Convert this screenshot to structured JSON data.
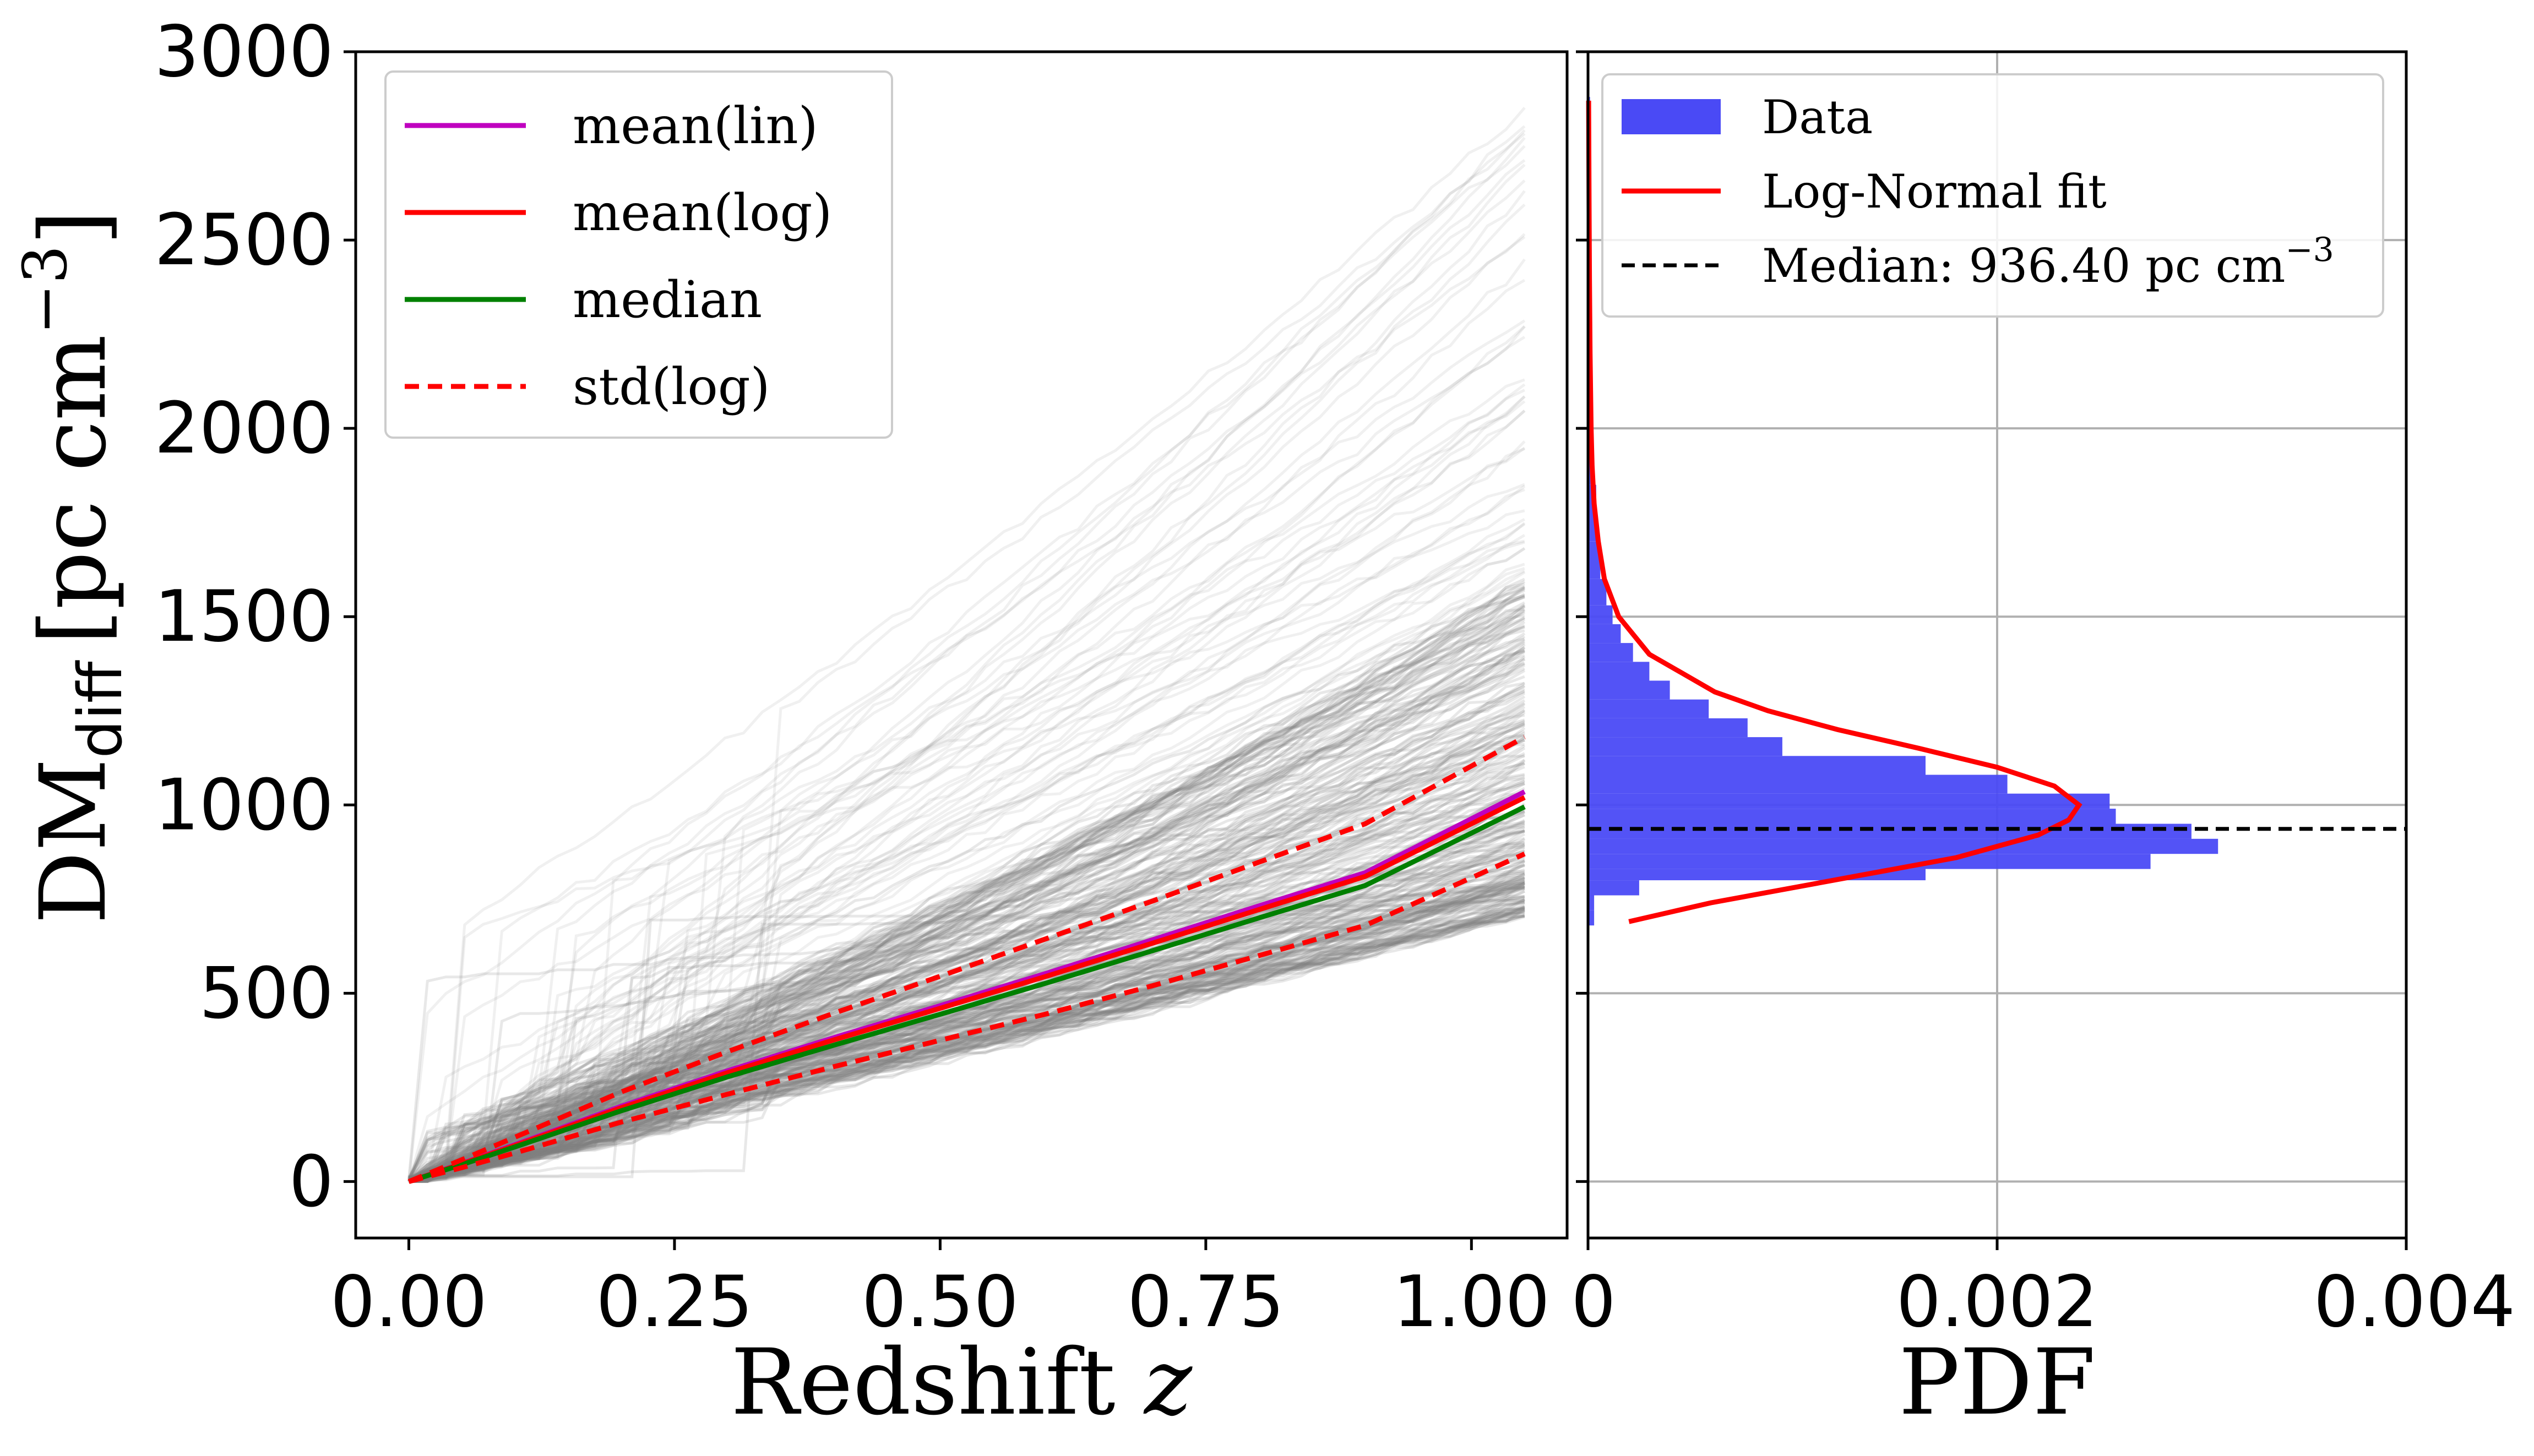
{
  "chart_data": [
    {
      "type": "line",
      "xlabel": "Redshift",
      "xlabel_var": "z",
      "ylabel_main": "DM",
      "ylabel_sub": "diff",
      "ylabel_units": "[pc cm",
      "ylabel_exp": "−3",
      "ylabel_close": "]",
      "xlim": [
        -0.05,
        1.09
      ],
      "ylim": [
        -150,
        3000
      ],
      "xticks": [
        0.0,
        0.25,
        0.5,
        0.75,
        1.0
      ],
      "xtick_labels": [
        "0.00",
        "0.25",
        "0.50",
        "0.75",
        "1.00"
      ],
      "yticks": [
        0,
        500,
        1000,
        1500,
        2000,
        2500,
        3000
      ],
      "ytick_labels": [
        "0",
        "500",
        "1000",
        "1500",
        "2000",
        "2500",
        "3000"
      ],
      "legend_position": "upper-left",
      "x": [
        0.0,
        0.05,
        0.1,
        0.2,
        0.3,
        0.4,
        0.5,
        0.6,
        0.7,
        0.8,
        0.9,
        1.05
      ],
      "series": [
        {
          "name": "mean(lin)",
          "color": "#bf00bf",
          "dash": "solid",
          "values": [
            0,
            48,
            98,
            200,
            294,
            382,
            467,
            553,
            642,
            732,
            820,
            1035
          ]
        },
        {
          "name": "mean(log)",
          "color": "#ff0000",
          "dash": "solid",
          "values": [
            0,
            47,
            96,
            196,
            289,
            376,
            460,
            545,
            633,
            722,
            810,
            1020
          ]
        },
        {
          "name": "median",
          "color": "#008000",
          "dash": "solid",
          "values": [
            0,
            45,
            92,
            188,
            278,
            362,
            444,
            527,
            613,
            700,
            786,
            995
          ]
        },
        {
          "name": "std(log)",
          "color": "#ff0000",
          "dash": "dashed",
          "values": [
            0,
            58,
            118,
            238,
            345,
            447,
            545,
            645,
            745,
            848,
            950,
            1180
          ]
        },
        {
          "name": "std(log) lower",
          "color": "#ff0000",
          "dash": "dashed",
          "values": [
            0,
            37,
            76,
            158,
            232,
            305,
            375,
            445,
            520,
            600,
            680,
            870
          ]
        }
      ],
      "background_realizations": {
        "color": "#808080",
        "description_count": 300,
        "lower_envelope_end": 710,
        "upper_envelope_end": 2860
      }
    },
    {
      "type": "histogram",
      "orientation": "horizontal",
      "xlabel": "PDF",
      "xlim": [
        0,
        0.004
      ],
      "ylim": [
        -150,
        3000
      ],
      "xticks": [
        0,
        0.002,
        0.004
      ],
      "xtick_labels": [
        "0",
        "0.002",
        "0.004"
      ],
      "legend_position": "upper-right",
      "bins": [
        {
          "lo": 680,
          "hi": 720,
          "pdf": 3e-05
        },
        {
          "lo": 720,
          "hi": 760,
          "pdf": 3e-05
        },
        {
          "lo": 760,
          "hi": 800,
          "pdf": 0.00025
        },
        {
          "lo": 800,
          "hi": 830,
          "pdf": 0.00165
        },
        {
          "lo": 830,
          "hi": 870,
          "pdf": 0.00275
        },
        {
          "lo": 870,
          "hi": 910,
          "pdf": 0.00308
        },
        {
          "lo": 910,
          "hi": 950,
          "pdf": 0.00295
        },
        {
          "lo": 950,
          "hi": 990,
          "pdf": 0.00258
        },
        {
          "lo": 990,
          "hi": 1030,
          "pdf": 0.00255
        },
        {
          "lo": 1030,
          "hi": 1080,
          "pdf": 0.00205
        },
        {
          "lo": 1080,
          "hi": 1130,
          "pdf": 0.00165
        },
        {
          "lo": 1130,
          "hi": 1180,
          "pdf": 0.00095
        },
        {
          "lo": 1180,
          "hi": 1230,
          "pdf": 0.00078
        },
        {
          "lo": 1230,
          "hi": 1280,
          "pdf": 0.00059
        },
        {
          "lo": 1280,
          "hi": 1330,
          "pdf": 0.0004
        },
        {
          "lo": 1330,
          "hi": 1380,
          "pdf": 0.0003
        },
        {
          "lo": 1380,
          "hi": 1430,
          "pdf": 0.00022
        },
        {
          "lo": 1430,
          "hi": 1480,
          "pdf": 0.00016
        },
        {
          "lo": 1480,
          "hi": 1530,
          "pdf": 0.00012
        },
        {
          "lo": 1530,
          "hi": 1600,
          "pdf": 9e-05
        },
        {
          "lo": 1600,
          "hi": 1700,
          "pdf": 6e-05
        },
        {
          "lo": 1700,
          "hi": 1850,
          "pdf": 4e-05
        },
        {
          "lo": 1850,
          "hi": 2100,
          "pdf": 2e-05
        },
        {
          "lo": 2100,
          "hi": 2880,
          "pdf": 1e-05
        }
      ],
      "fit": {
        "name": "Log-Normal fit",
        "color": "#ff0000",
        "y": [
          690,
          740,
          800,
          860,
          920,
          960,
          1000,
          1050,
          1100,
          1150,
          1200,
          1250,
          1300,
          1400,
          1500,
          1600,
          1700,
          1800,
          1900,
          2000,
          2200,
          2400,
          2600,
          2870
        ],
        "pdf": [
          0.0002,
          0.0006,
          0.0012,
          0.0018,
          0.0022,
          0.00235,
          0.0024,
          0.00228,
          0.002,
          0.00162,
          0.00122,
          0.00088,
          0.00062,
          0.0003,
          0.00015,
          8e-05,
          5e-05,
          3e-05,
          2e-05,
          1.5e-05,
          1e-05,
          7e-06,
          5e-06,
          3e-06
        ]
      },
      "median": {
        "value": 936.4,
        "color": "#000000"
      },
      "legend": [
        {
          "label": "Data",
          "kind": "patch",
          "color": "#4a4af5"
        },
        {
          "label": "Log-Normal fit",
          "kind": "line",
          "color": "#ff0000"
        },
        {
          "label": "Median: 936.40 pc cm",
          "label_exp": "−3",
          "kind": "dashed",
          "color": "#000000"
        }
      ],
      "bar_color": "#4a4af5"
    }
  ]
}
